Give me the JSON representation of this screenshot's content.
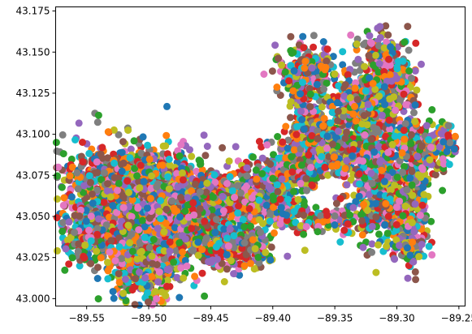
{
  "chart_data": {
    "type": "scatter",
    "title": "",
    "xlabel": "",
    "ylabel": "",
    "xlim": [
      -89.575,
      -89.245
    ],
    "ylim": [
      42.9955,
      43.1775
    ],
    "grid": false,
    "legend": "none",
    "xticks": [
      -89.55,
      -89.5,
      -89.45,
      -89.4,
      -89.35,
      -89.3,
      -89.25
    ],
    "xtick_labels": [
      "−89.55",
      "−89.50",
      "−89.45",
      "−89.40",
      "−89.35",
      "−89.30",
      "−89.25"
    ],
    "yticks": [
      43.0,
      43.025,
      43.05,
      43.075,
      43.1,
      43.125,
      43.15,
      43.175
    ],
    "ytick_labels": [
      "43.000",
      "43.025",
      "43.050",
      "43.075",
      "43.100",
      "43.125",
      "43.150",
      "43.175"
    ],
    "palette": [
      "#1f77b4",
      "#ff7f0e",
      "#2ca02c",
      "#d62728",
      "#9467bd",
      "#8c564b",
      "#e377c2",
      "#7f7f7f",
      "#bcbd22",
      "#17becf"
    ],
    "clusters": [
      {
        "x": -89.525,
        "y": 43.062,
        "sx": 0.024,
        "sy": 0.016,
        "n": 900
      },
      {
        "x": -89.547,
        "y": 43.038,
        "sx": 0.01,
        "sy": 0.008,
        "n": 250
      },
      {
        "x": -89.505,
        "y": 43.022,
        "sx": 0.012,
        "sy": 0.012,
        "n": 450
      },
      {
        "x": -89.495,
        "y": 43.07,
        "sx": 0.015,
        "sy": 0.01,
        "n": 500
      },
      {
        "x": -89.47,
        "y": 43.05,
        "sx": 0.022,
        "sy": 0.015,
        "n": 800
      },
      {
        "x": -89.44,
        "y": 43.062,
        "sx": 0.018,
        "sy": 0.007,
        "n": 400
      },
      {
        "x": -89.425,
        "y": 43.032,
        "sx": 0.012,
        "sy": 0.007,
        "n": 250
      },
      {
        "x": -89.4,
        "y": 43.062,
        "sx": 0.013,
        "sy": 0.012,
        "n": 350
      },
      {
        "x": -89.385,
        "y": 43.08,
        "sx": 0.01,
        "sy": 0.008,
        "n": 250
      },
      {
        "x": -89.37,
        "y": 43.1,
        "sx": 0.008,
        "sy": 0.016,
        "n": 300
      },
      {
        "x": -89.372,
        "y": 43.138,
        "sx": 0.012,
        "sy": 0.008,
        "n": 250
      },
      {
        "x": -89.35,
        "y": 43.092,
        "sx": 0.012,
        "sy": 0.008,
        "n": 250
      },
      {
        "x": -89.322,
        "y": 43.11,
        "sx": 0.013,
        "sy": 0.015,
        "n": 450
      },
      {
        "x": -89.305,
        "y": 43.132,
        "sx": 0.01,
        "sy": 0.012,
        "n": 250
      },
      {
        "x": -89.315,
        "y": 43.07,
        "sx": 0.012,
        "sy": 0.018,
        "n": 450
      },
      {
        "x": -89.29,
        "y": 43.05,
        "sx": 0.008,
        "sy": 0.014,
        "n": 200
      },
      {
        "x": -89.283,
        "y": 43.09,
        "sx": 0.01,
        "sy": 0.01,
        "n": 250
      },
      {
        "x": -89.262,
        "y": 43.095,
        "sx": 0.005,
        "sy": 0.005,
        "n": 70
      },
      {
        "x": -89.292,
        "y": 43.03,
        "sx": 0.006,
        "sy": 0.004,
        "n": 70
      },
      {
        "x": -89.355,
        "y": 43.048,
        "sx": 0.012,
        "sy": 0.004,
        "n": 110
      },
      {
        "x": -89.332,
        "y": 43.12,
        "sx": 0.008,
        "sy": 0.006,
        "n": 120
      },
      {
        "x": -89.315,
        "y": 43.148,
        "sx": 0.006,
        "sy": 0.01,
        "n": 90
      }
    ]
  }
}
